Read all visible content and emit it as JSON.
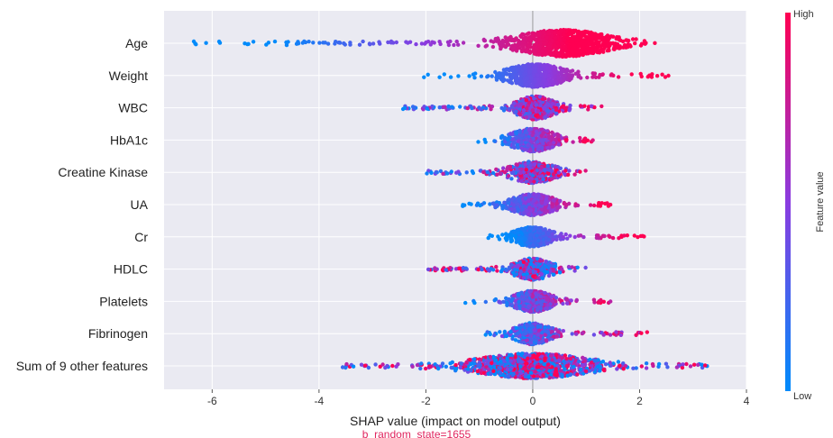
{
  "chart_data": {
    "type": "scatter",
    "subtype": "shap-beeswarm",
    "title": "",
    "xlabel": "SHAP value (impact on model output)",
    "ylabel": "",
    "xlim": [
      -6.9,
      4.0
    ],
    "x_ticks": [
      -6,
      -4,
      -2,
      0,
      2,
      4
    ],
    "grid": "vertical",
    "colorbar": {
      "title": "Feature value",
      "high_label": "High",
      "low_label": "Low",
      "high_color": "#ff0052",
      "low_color": "#008bfb"
    },
    "features": [
      {
        "name": "Age",
        "min": -6.45,
        "max": 2.35
      },
      {
        "name": "Weight",
        "min": -2.1,
        "max": 2.7
      },
      {
        "name": "WBC",
        "min": -2.45,
        "max": 1.3
      },
      {
        "name": "HbA1c",
        "min": -1.05,
        "max": 1.2
      },
      {
        "name": "Creatine Kinase",
        "min": -2.0,
        "max": 1.0
      },
      {
        "name": "UA",
        "min": -1.35,
        "max": 1.55
      },
      {
        "name": "Cr",
        "min": -0.85,
        "max": 2.2
      },
      {
        "name": "HDLC",
        "min": -2.0,
        "max": 1.0
      },
      {
        "name": "Platelets",
        "min": -1.3,
        "max": 1.55
      },
      {
        "name": "Fibrinogen",
        "min": -0.9,
        "max": 2.15
      },
      {
        "name": "Sum of 9 other features",
        "min": -3.6,
        "max": 3.5
      }
    ]
  },
  "footnote": "b_random_state=1655"
}
